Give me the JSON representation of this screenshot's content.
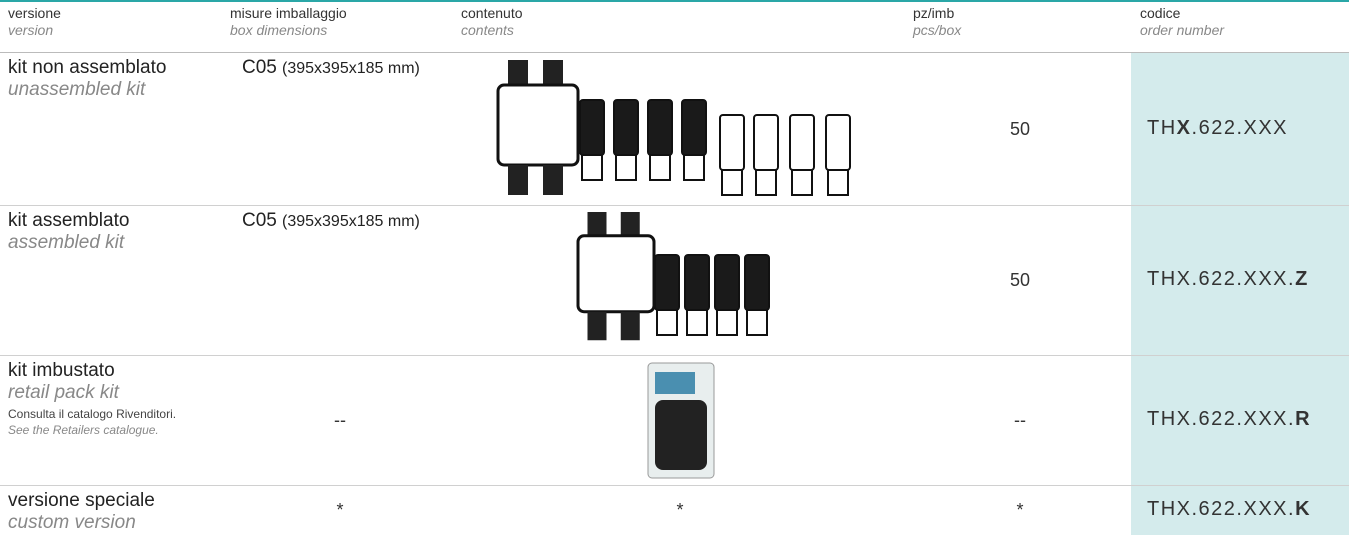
{
  "table": {
    "header": [
      {
        "label": "versione",
        "sublabel": "version"
      },
      {
        "label": "misure imballaggio",
        "sublabel": "box dimensions"
      },
      {
        "label": "contenuto",
        "sublabel": "contents"
      },
      {
        "label": "pz/imb",
        "sublabel": "pcs/box"
      },
      {
        "label": "codice",
        "sublabel": "order number"
      }
    ],
    "rows": [
      {
        "version": {
          "it": "kit non assemblato",
          "en": "unassembled kit"
        },
        "box": {
          "code": "C05",
          "size": "(395x395x185 mm)"
        },
        "pcs": 50,
        "order": [
          {
            "text": "TH",
            "bold": false
          },
          {
            "text": "X",
            "bold": true
          },
          {
            "text": ".622.XXX",
            "bold": false
          }
        ]
      },
      {
        "version": {
          "it": "kit assemblato",
          "en": "assembled kit"
        },
        "box": {
          "code": "C05",
          "size": "(395x395x185 mm)"
        },
        "pcs": 50,
        "order": [
          {
            "text": "THX.622.XXX.",
            "bold": false
          },
          {
            "text": "Z",
            "bold": true
          }
        ]
      },
      {
        "version": {
          "it": "kit imbustato",
          "en": "retail pack kit",
          "note_it": "Consulta il catalogo Rivenditori.",
          "note_en": "See the Retailers catalogue."
        },
        "box": "--",
        "pcs": "--",
        "order": [
          {
            "text": "THX.622.XXX.",
            "bold": false
          },
          {
            "text": "R",
            "bold": true
          }
        ]
      },
      {
        "version": {
          "it": "versione speciale",
          "en": "custom version"
        },
        "box": "*",
        "contents": "*",
        "pcs": "*",
        "order": [
          {
            "text": "THX.622.XXX.",
            "bold": false
          },
          {
            "text": "K",
            "bold": true
          }
        ]
      }
    ]
  }
}
